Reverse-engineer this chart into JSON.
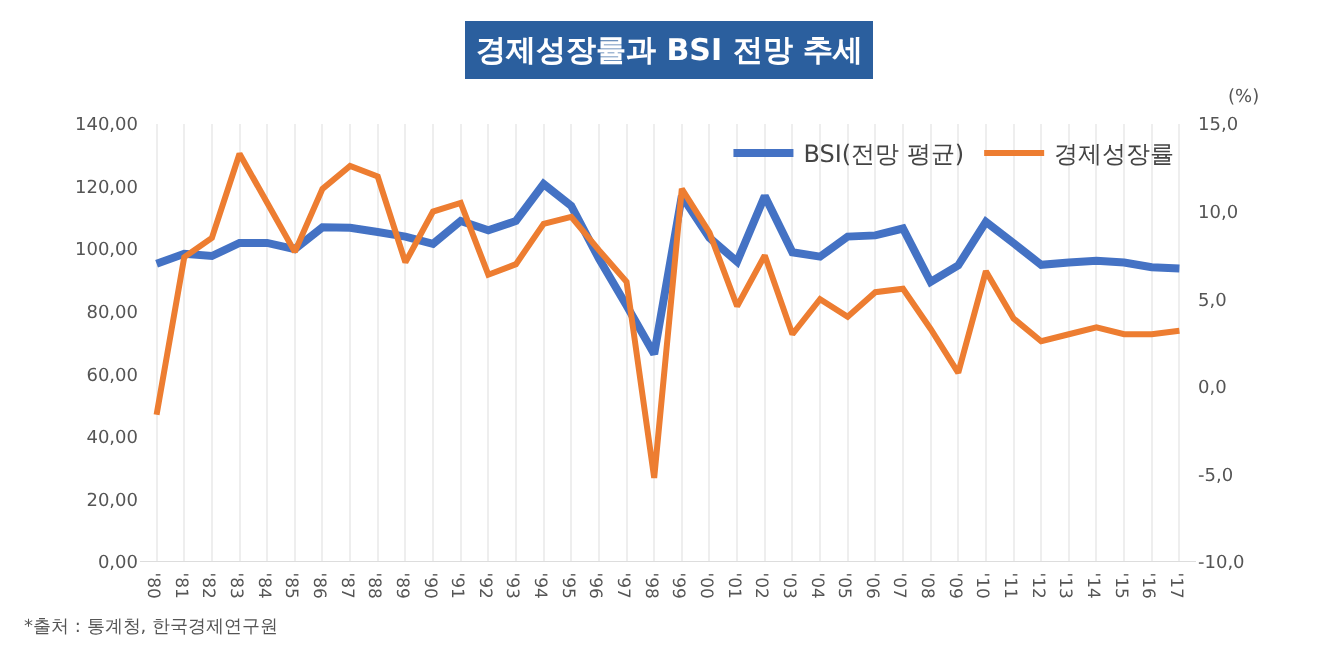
{
  "chart_data": {
    "type": "line",
    "title": "경제성장률과 BSI 전망 추세",
    "y2label": "(%)",
    "categories": [
      "'80",
      "'81",
      "'82",
      "'83",
      "'84",
      "'85",
      "'86",
      "'87",
      "'88",
      "'89",
      "'90",
      "'91",
      "'92",
      "'93",
      "'94",
      "'95",
      "'96",
      "'97",
      "'98",
      "'99",
      "'00",
      "'01",
      "'02",
      "'03",
      "'04",
      "'05",
      "'06",
      "'07",
      "'08",
      "'09",
      "'10",
      "'11",
      "'12",
      "'13",
      "'14",
      "'15",
      "'16",
      "'17"
    ],
    "series": [
      {
        "name": "BSI(전망 평균)",
        "color": "#4472c4",
        "values": [
          95.3,
          98.5,
          97.8,
          102,
          102,
          100,
          107,
          106.8,
          105.5,
          104,
          101.7,
          109,
          106,
          109,
          120.8,
          113.8,
          97,
          82,
          66.5,
          117,
          103.6,
          96,
          117,
          99,
          97.6,
          104,
          104.4,
          106.6,
          89.5,
          94.8,
          108.7,
          101.9,
          95,
          95.7,
          96.3,
          95.7,
          94.2,
          93.8
        ]
      },
      {
        "name": "경제성장률",
        "color": "#ed7d31",
        "axis": "y2",
        "values": [
          -1.6,
          7.4,
          8.5,
          13.3,
          10.5,
          7.7,
          11.3,
          12.6,
          12.0,
          7.1,
          10.0,
          10.5,
          6.4,
          7.0,
          9.3,
          9.7,
          7.8,
          6.0,
          -5.2,
          11.3,
          8.8,
          4.6,
          7.5,
          3.0,
          5.0,
          4.0,
          5.4,
          5.6,
          3.3,
          0.8,
          6.6,
          3.9,
          2.6,
          3.0,
          3.4,
          3.0,
          3.0,
          3.2
        ]
      }
    ],
    "ylim": [
      0,
      140
    ],
    "yticks": [
      {
        "value": 0,
        "label": "0,00"
      },
      {
        "value": 20,
        "label": "20,00"
      },
      {
        "value": 40,
        "label": "40,00"
      },
      {
        "value": 60,
        "label": "60,00"
      },
      {
        "value": 80,
        "label": "80,00"
      },
      {
        "value": 100,
        "label": "100,00"
      },
      {
        "value": 120,
        "label": "120,00"
      },
      {
        "value": 140,
        "label": "140,00"
      }
    ],
    "y2lim": [
      -10,
      15
    ],
    "y2ticks": [
      {
        "value": -10,
        "label": "-10,0"
      },
      {
        "value": -5,
        "label": "-5,0"
      },
      {
        "value": 0,
        "label": "0,0"
      },
      {
        "value": 5,
        "label": "5,0"
      },
      {
        "value": 10,
        "label": "10,0"
      },
      {
        "value": 15,
        "label": "15,0"
      }
    ],
    "grid": "x",
    "legend": "top right",
    "marker": "none",
    "line_style": "solid",
    "annotations": [
      "*출처 : 통계청, 한국경제연구원"
    ]
  }
}
